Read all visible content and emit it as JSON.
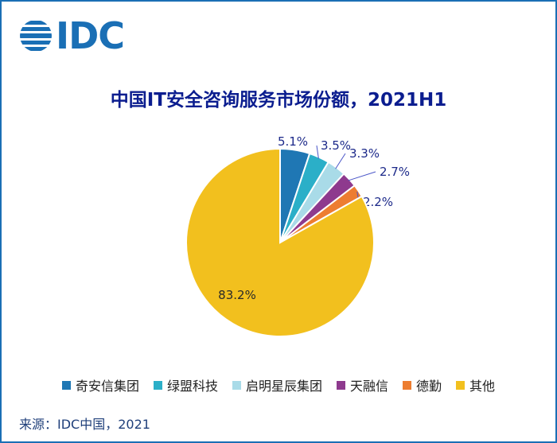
{
  "logo": {
    "text": "IDC",
    "icon": "globe-stripes-icon",
    "color": "#1a6fb5"
  },
  "source": "来源：IDC中国，2021",
  "chart_data": {
    "type": "pie",
    "title": "中国IT安全咨询服务市场份额，2021H1",
    "legend_position": "bottom",
    "series": [
      {
        "name": "奇安信集团",
        "value": 5.1,
        "label": "5.1%",
        "color": "#1f77b4"
      },
      {
        "name": "绿盟科技",
        "value": 3.5,
        "label": "3.5%",
        "color": "#2bafc8"
      },
      {
        "name": "启明星辰集团",
        "value": 3.3,
        "label": "3.3%",
        "color": "#a9dbe8"
      },
      {
        "name": "天融信",
        "value": 2.7,
        "label": "2.7%",
        "color": "#8e3a8e"
      },
      {
        "name": "德勤",
        "value": 2.2,
        "label": "2.2%",
        "color": "#ed7d31"
      },
      {
        "name": "其他",
        "value": 83.2,
        "label": "83.2%",
        "color": "#f2c01e"
      }
    ]
  }
}
